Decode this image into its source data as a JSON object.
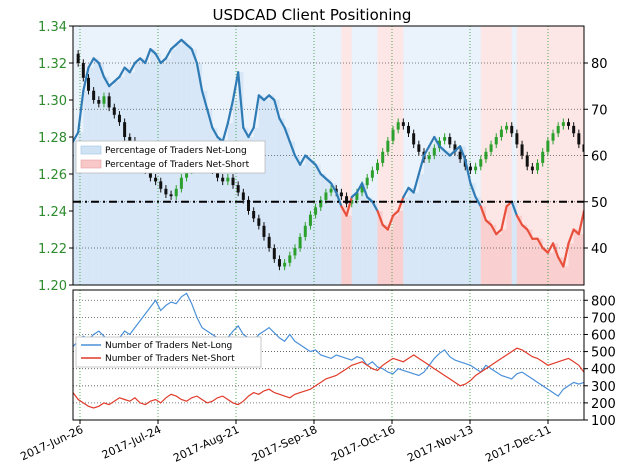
{
  "chart_data": [
    {
      "type": "line",
      "title": "USDCAD Client Positioning",
      "left_axis": {
        "ticks": [
          "1.20",
          "1.22",
          "1.24",
          "1.26",
          "1.28",
          "1.30",
          "1.32",
          "1.34"
        ],
        "ylim": [
          1.2,
          1.34
        ],
        "color": "#2e8b2e"
      },
      "right_axis": {
        "ticks": [
          "40",
          "50",
          "60",
          "70",
          "80"
        ],
        "ylim": [
          32,
          88
        ]
      },
      "x_labels": [
        "2017-Jun-26",
        "2017-Jul-24",
        "2017-Aug-21",
        "2017-Sep-18",
        "2017-Oct-16",
        "2017-Nov-13",
        "2017-Dec-11"
      ],
      "reference_line_percent": 50,
      "legend": {
        "placement": "middle-left",
        "items": [
          {
            "name": "Percentage of Traders Net-Long",
            "color": "#cfe3f5"
          },
          {
            "name": "Percentage of Traders Net-Short",
            "color": "#f8c8c8"
          }
        ]
      },
      "series": [
        {
          "name": "Percentage of Traders Net-Long",
          "color": "#2f7bb5",
          "values": [
            63,
            65,
            74,
            79,
            81,
            80,
            77,
            75,
            76,
            77,
            79,
            78,
            80,
            81,
            80,
            83,
            82,
            80,
            81,
            83,
            84,
            85,
            84,
            83,
            80,
            74,
            70,
            66,
            64,
            63,
            67,
            72,
            78,
            66,
            64,
            66,
            73,
            72,
            73,
            72,
            68,
            66,
            63,
            60,
            58,
            60,
            59,
            58,
            56,
            55,
            54,
            52,
            49,
            47,
            51,
            52,
            54,
            51,
            50,
            48,
            45,
            44,
            47,
            48,
            51,
            53,
            52,
            56,
            60,
            62,
            64,
            62,
            61,
            60,
            61,
            62,
            59,
            54,
            51,
            49,
            46,
            45,
            43,
            44,
            49,
            50,
            47,
            45,
            44,
            42,
            42,
            40,
            39,
            41,
            38,
            36,
            41,
            44,
            43,
            48
          ]
        },
        {
          "name": "USDCAD price",
          "color": "#000000",
          "values": [
            1.325,
            1.32,
            1.312,
            1.305,
            1.3,
            1.298,
            1.302,
            1.296,
            1.292,
            1.288,
            1.28,
            1.278,
            1.274,
            1.268,
            1.262,
            1.258,
            1.256,
            1.252,
            1.249,
            1.248,
            1.252,
            1.258,
            1.262,
            1.266,
            1.27,
            1.268,
            1.266,
            1.262,
            1.258,
            1.256,
            1.258,
            1.254,
            1.25,
            1.246,
            1.24,
            1.236,
            1.232,
            1.226,
            1.22,
            1.214,
            1.21,
            1.212,
            1.216,
            1.22,
            1.226,
            1.232,
            1.238,
            1.242,
            1.246,
            1.25,
            1.252,
            1.25,
            1.248,
            1.244,
            1.246,
            1.25,
            1.254,
            1.258,
            1.262,
            1.266,
            1.272,
            1.278,
            1.284,
            1.288,
            1.286,
            1.282,
            1.276,
            1.272,
            1.268,
            1.27,
            1.274,
            1.278,
            1.28,
            1.276,
            1.272,
            1.268,
            1.264,
            1.262,
            1.264,
            1.268,
            1.272,
            1.276,
            1.28,
            1.284,
            1.286,
            1.282,
            1.276,
            1.27,
            1.264,
            1.262,
            1.266,
            1.272,
            1.278,
            1.282,
            1.286,
            1.288,
            1.286,
            1.282,
            1.276,
            1.272
          ]
        }
      ]
    },
    {
      "type": "line",
      "right_axis": {
        "ticks": [
          "100",
          "200",
          "300",
          "400",
          "500",
          "600",
          "700",
          "800"
        ],
        "ylim": [
          100,
          860
        ]
      },
      "legend": {
        "placement": "middle-left"
      },
      "series": [
        {
          "name": "Number of Traders Net-Long",
          "color": "#4a90d9",
          "values": [
            530,
            560,
            590,
            570,
            600,
            620,
            590,
            560,
            540,
            580,
            620,
            600,
            640,
            680,
            720,
            760,
            800,
            740,
            770,
            790,
            780,
            820,
            840,
            780,
            700,
            640,
            620,
            600,
            580,
            560,
            580,
            620,
            650,
            600,
            580,
            560,
            600,
            620,
            640,
            610,
            580,
            560,
            600,
            560,
            540,
            520,
            500,
            510,
            480,
            470,
            460,
            480,
            470,
            460,
            450,
            470,
            460,
            420,
            440,
            410,
            400,
            380,
            370,
            400,
            390,
            380,
            370,
            360,
            380,
            420,
            460,
            490,
            510,
            470,
            450,
            440,
            430,
            420,
            400,
            380,
            420,
            400,
            380,
            360,
            350,
            340,
            370,
            380,
            360,
            340,
            320,
            300,
            280,
            260,
            240,
            280,
            300,
            320,
            310,
            320
          ]
        },
        {
          "name": "Number of Traders Net-Short",
          "color": "#e03a2a",
          "values": [
            260,
            220,
            200,
            180,
            170,
            180,
            200,
            190,
            210,
            230,
            220,
            210,
            230,
            200,
            190,
            210,
            220,
            200,
            230,
            250,
            240,
            220,
            210,
            230,
            240,
            220,
            200,
            210,
            230,
            240,
            220,
            200,
            190,
            210,
            240,
            260,
            250,
            270,
            280,
            260,
            250,
            240,
            230,
            250,
            260,
            270,
            280,
            300,
            320,
            340,
            350,
            360,
            380,
            400,
            420,
            430,
            440,
            420,
            400,
            390,
            420,
            440,
            460,
            450,
            440,
            460,
            480,
            460,
            440,
            420,
            400,
            380,
            360,
            340,
            320,
            300,
            310,
            330,
            360,
            380,
            400,
            420,
            440,
            460,
            480,
            500,
            520,
            510,
            490,
            470,
            460,
            440,
            420,
            430,
            440,
            450,
            460,
            440,
            420,
            380
          ]
        }
      ]
    }
  ]
}
